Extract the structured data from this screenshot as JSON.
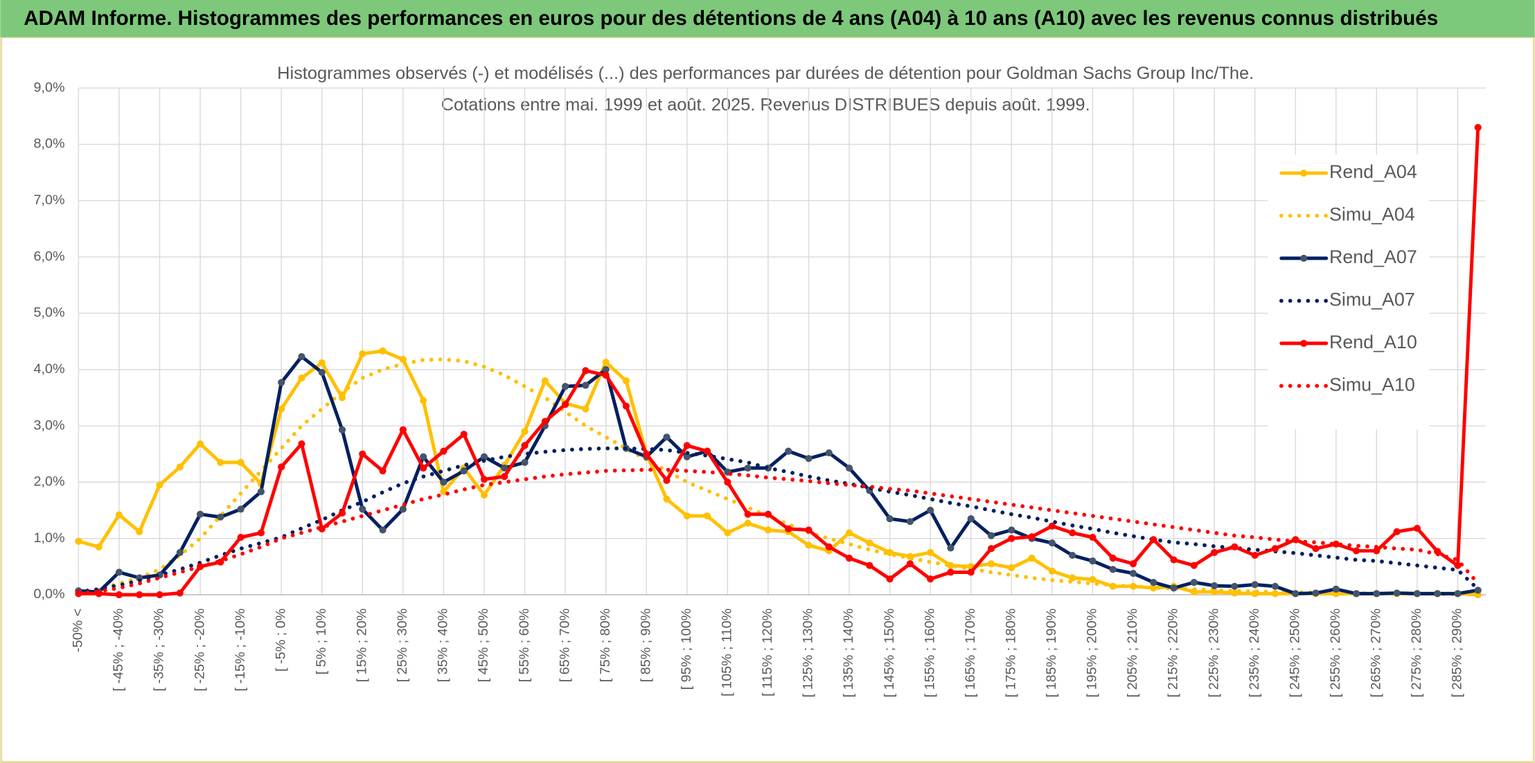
{
  "header": {
    "title": "ADAM Informe. Histogrammes des performances en euros pour des détentions de 4 ans (A04) à 10 ans (A10) avec les revenus connus distribués"
  },
  "chart_data": {
    "type": "line",
    "title": "Histogrammes observés (-) et modélisés (...) des performances par durées de détention pour Goldman Sachs Group Inc/The.",
    "subtitle": "Cotations entre mai. 1999 et août. 2025. Revenus DISTRIBUES depuis août. 1999.",
    "categories": [
      "-50% <",
      null,
      "[ -45% ; -40%",
      null,
      "[ -35% ; -30%",
      null,
      "[ -25% ; -20%",
      null,
      "[ -15% ; -10%",
      null,
      "[ -5% ; 0%",
      null,
      "[ 5% ; 10%",
      null,
      "[ 15% ; 20%",
      null,
      "[ 25% ; 30%",
      null,
      "[ 35% ; 40%",
      null,
      "[ 45% ; 50%",
      null,
      "[ 55% ; 60%",
      null,
      "[ 65% ; 70%",
      null,
      "[ 75% ; 80%",
      null,
      "[ 85% ; 90%",
      null,
      "[ 95% ; 100%",
      null,
      "[ 105% ; 110%",
      null,
      "[ 115% ; 120%",
      null,
      "[ 125% ; 130%",
      null,
      "[ 135% ; 140%",
      null,
      "[ 145% ; 150%",
      null,
      "[ 155% ; 160%",
      null,
      "[ 165% ; 170%",
      null,
      "[ 175% ; 180%",
      null,
      "[ 185% ; 190%",
      null,
      "[ 195% ; 200%",
      null,
      "[ 205% ; 210%",
      null,
      "[ 215% ; 220%",
      null,
      "[ 225% ; 230%",
      null,
      "[ 235% ; 240%",
      null,
      "[ 245% ; 250%",
      null,
      "[ 255% ; 260%",
      null,
      "[ 265% ; 270%",
      null,
      "[ 275% ; 280%",
      null,
      "[ 285% ; 290%",
      null
    ],
    "ylim": [
      0,
      9
    ],
    "yticks": [
      {
        "value": 0,
        "label": "0,0%"
      },
      {
        "value": 1,
        "label": "1,0%"
      },
      {
        "value": 2,
        "label": "2,0%"
      },
      {
        "value": 3,
        "label": "3,0%"
      },
      {
        "value": 4,
        "label": "4,0%"
      },
      {
        "value": 5,
        "label": "5,0%"
      },
      {
        "value": 6,
        "label": "6,0%"
      },
      {
        "value": 7,
        "label": "7,0%"
      },
      {
        "value": 8,
        "label": "8,0%"
      },
      {
        "value": 9,
        "label": "9,0%"
      }
    ],
    "grid": true,
    "legend": "right",
    "series": [
      {
        "name": "Rend_A04",
        "color": "#ffc000",
        "style": "solid",
        "markers": true,
        "values": [
          0.95,
          0.85,
          1.42,
          1.12,
          1.95,
          2.27,
          2.68,
          2.35,
          2.35,
          1.97,
          3.3,
          3.85,
          4.12,
          3.5,
          4.28,
          4.33,
          4.18,
          3.45,
          1.83,
          2.25,
          1.77,
          2.3,
          2.9,
          3.8,
          3.4,
          3.3,
          4.13,
          3.8,
          2.5,
          1.7,
          1.4,
          1.4,
          1.1,
          1.27,
          1.15,
          1.12,
          0.88,
          0.78,
          1.1,
          0.92,
          0.75,
          0.68,
          0.75,
          0.52,
          0.5,
          0.55,
          0.48,
          0.65,
          0.42,
          0.3,
          0.27,
          0.15,
          0.15,
          0.12,
          0.15,
          0.05,
          0.05,
          0.03,
          0.02,
          0.02,
          0.02,
          0.02,
          0.02,
          0.02,
          0.02,
          0.02,
          0.02,
          0.02,
          0.02,
          0.0
        ]
      },
      {
        "name": "Simu_A04",
        "color": "#ffc000",
        "style": "dotted",
        "markers": false,
        "values": [
          0.05,
          0.1,
          0.2,
          0.3,
          0.45,
          0.7,
          1.0,
          1.4,
          1.8,
          2.2,
          2.6,
          3.0,
          3.3,
          3.6,
          3.85,
          4.0,
          4.1,
          4.17,
          4.18,
          4.15,
          4.05,
          3.9,
          3.7,
          3.5,
          3.25,
          3.0,
          2.8,
          2.6,
          2.4,
          2.2,
          2.0,
          1.85,
          1.7,
          1.55,
          1.4,
          1.25,
          1.1,
          1.0,
          0.9,
          0.8,
          0.72,
          0.65,
          0.58,
          0.52,
          0.46,
          0.4,
          0.35,
          0.3,
          0.26,
          0.23,
          0.2,
          0.17,
          0.15,
          0.13,
          0.11,
          0.1,
          0.08,
          0.07,
          0.06,
          0.05,
          0.04,
          0.04,
          0.03,
          0.03,
          0.02,
          0.02,
          0.02,
          0.01,
          0.01,
          0.01
        ]
      },
      {
        "name": "Rend_A07",
        "color": "#002060",
        "style": "solid",
        "markers": true,
        "values": [
          0.07,
          0.05,
          0.4,
          0.3,
          0.35,
          0.75,
          1.43,
          1.38,
          1.52,
          1.83,
          3.77,
          4.23,
          3.95,
          2.93,
          1.52,
          1.15,
          1.52,
          2.45,
          2.0,
          2.2,
          2.45,
          2.25,
          2.35,
          3.0,
          3.7,
          3.72,
          4.0,
          2.6,
          2.45,
          2.8,
          2.45,
          2.55,
          2.18,
          2.25,
          2.25,
          2.55,
          2.42,
          2.52,
          2.25,
          1.85,
          1.35,
          1.3,
          1.5,
          0.83,
          1.35,
          1.05,
          1.15,
          1.0,
          0.92,
          0.7,
          0.6,
          0.45,
          0.38,
          0.22,
          0.12,
          0.22,
          0.16,
          0.15,
          0.18,
          0.15,
          0.02,
          0.03,
          0.1,
          0.02,
          0.02,
          0.03,
          0.02,
          0.02,
          0.02,
          0.08
        ]
      },
      {
        "name": "Simu_A07",
        "color": "#002060",
        "style": "dotted",
        "markers": false,
        "values": [
          0.05,
          0.1,
          0.17,
          0.25,
          0.35,
          0.45,
          0.57,
          0.7,
          0.82,
          0.92,
          1.02,
          1.18,
          1.33,
          1.5,
          1.65,
          1.82,
          1.98,
          2.1,
          2.2,
          2.3,
          2.38,
          2.45,
          2.5,
          2.54,
          2.57,
          2.59,
          2.6,
          2.6,
          2.59,
          2.57,
          2.52,
          2.47,
          2.41,
          2.35,
          2.25,
          2.18,
          2.1,
          2.03,
          1.97,
          1.9,
          1.83,
          1.77,
          1.7,
          1.63,
          1.57,
          1.5,
          1.43,
          1.37,
          1.3,
          1.23,
          1.17,
          1.1,
          1.04,
          0.98,
          0.93,
          0.9,
          0.86,
          0.83,
          0.8,
          0.77,
          0.74,
          0.7,
          0.66,
          0.62,
          0.6,
          0.56,
          0.52,
          0.48,
          0.44,
          0.1
        ]
      },
      {
        "name": "Rend_A10",
        "color": "#ff0000",
        "style": "solid",
        "markers": true,
        "values": [
          0.02,
          0.02,
          0.0,
          0.0,
          0.0,
          0.03,
          0.5,
          0.58,
          1.02,
          1.1,
          2.27,
          2.68,
          1.17,
          1.45,
          2.5,
          2.2,
          2.93,
          2.25,
          2.55,
          2.85,
          2.05,
          2.1,
          2.65,
          3.08,
          3.38,
          3.98,
          3.9,
          3.35,
          2.5,
          2.03,
          2.65,
          2.55,
          2.0,
          1.43,
          1.43,
          1.17,
          1.15,
          0.85,
          0.65,
          0.52,
          0.28,
          0.55,
          0.28,
          0.4,
          0.4,
          0.82,
          1.0,
          1.03,
          1.22,
          1.1,
          1.02,
          0.65,
          0.55,
          0.98,
          0.62,
          0.52,
          0.75,
          0.85,
          0.7,
          0.82,
          0.98,
          0.82,
          0.9,
          0.78,
          0.78,
          1.12,
          1.18,
          0.77,
          0.52,
          8.3
        ]
      },
      {
        "name": "Simu_A10",
        "color": "#ff0000",
        "style": "dotted",
        "markers": false,
        "values": [
          0.02,
          0.06,
          0.12,
          0.2,
          0.3,
          0.4,
          0.5,
          0.6,
          0.72,
          0.85,
          1.0,
          1.1,
          1.2,
          1.3,
          1.4,
          1.5,
          1.6,
          1.7,
          1.78,
          1.87,
          1.95,
          2.0,
          2.05,
          2.1,
          2.14,
          2.17,
          2.2,
          2.21,
          2.22,
          2.22,
          2.2,
          2.18,
          2.15,
          2.12,
          2.08,
          2.05,
          2.02,
          1.98,
          1.95,
          1.92,
          1.88,
          1.85,
          1.8,
          1.75,
          1.7,
          1.65,
          1.6,
          1.55,
          1.5,
          1.45,
          1.4,
          1.35,
          1.3,
          1.25,
          1.2,
          1.15,
          1.1,
          1.05,
          1.02,
          0.98,
          0.95,
          0.93,
          0.9,
          0.87,
          0.85,
          0.82,
          0.8,
          0.72,
          0.62,
          0.2
        ]
      }
    ]
  }
}
